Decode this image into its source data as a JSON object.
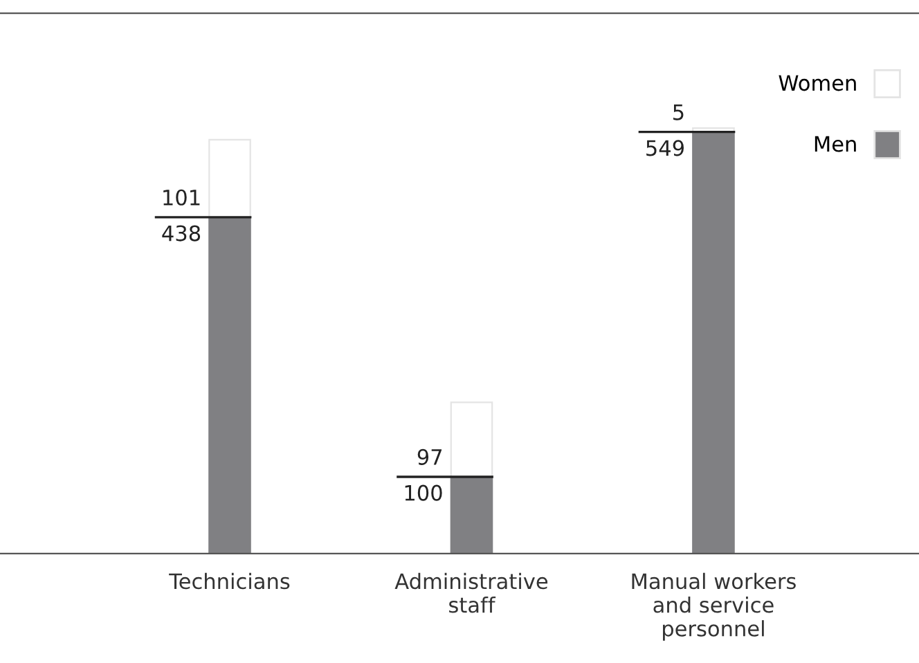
{
  "chart_data": {
    "type": "bar",
    "stacked": true,
    "categories": [
      "Technicians",
      "Administrative\nstaff",
      "Manual workers\nand service\npersonnel"
    ],
    "series": [
      {
        "name": "Men",
        "color": "#808083",
        "values": [
          438,
          100,
          549
        ]
      },
      {
        "name": "Women",
        "color": "#ffffff",
        "values": [
          101,
          97,
          5
        ]
      }
    ],
    "data_labels": true,
    "legend": "top right",
    "grid": false
  }
}
